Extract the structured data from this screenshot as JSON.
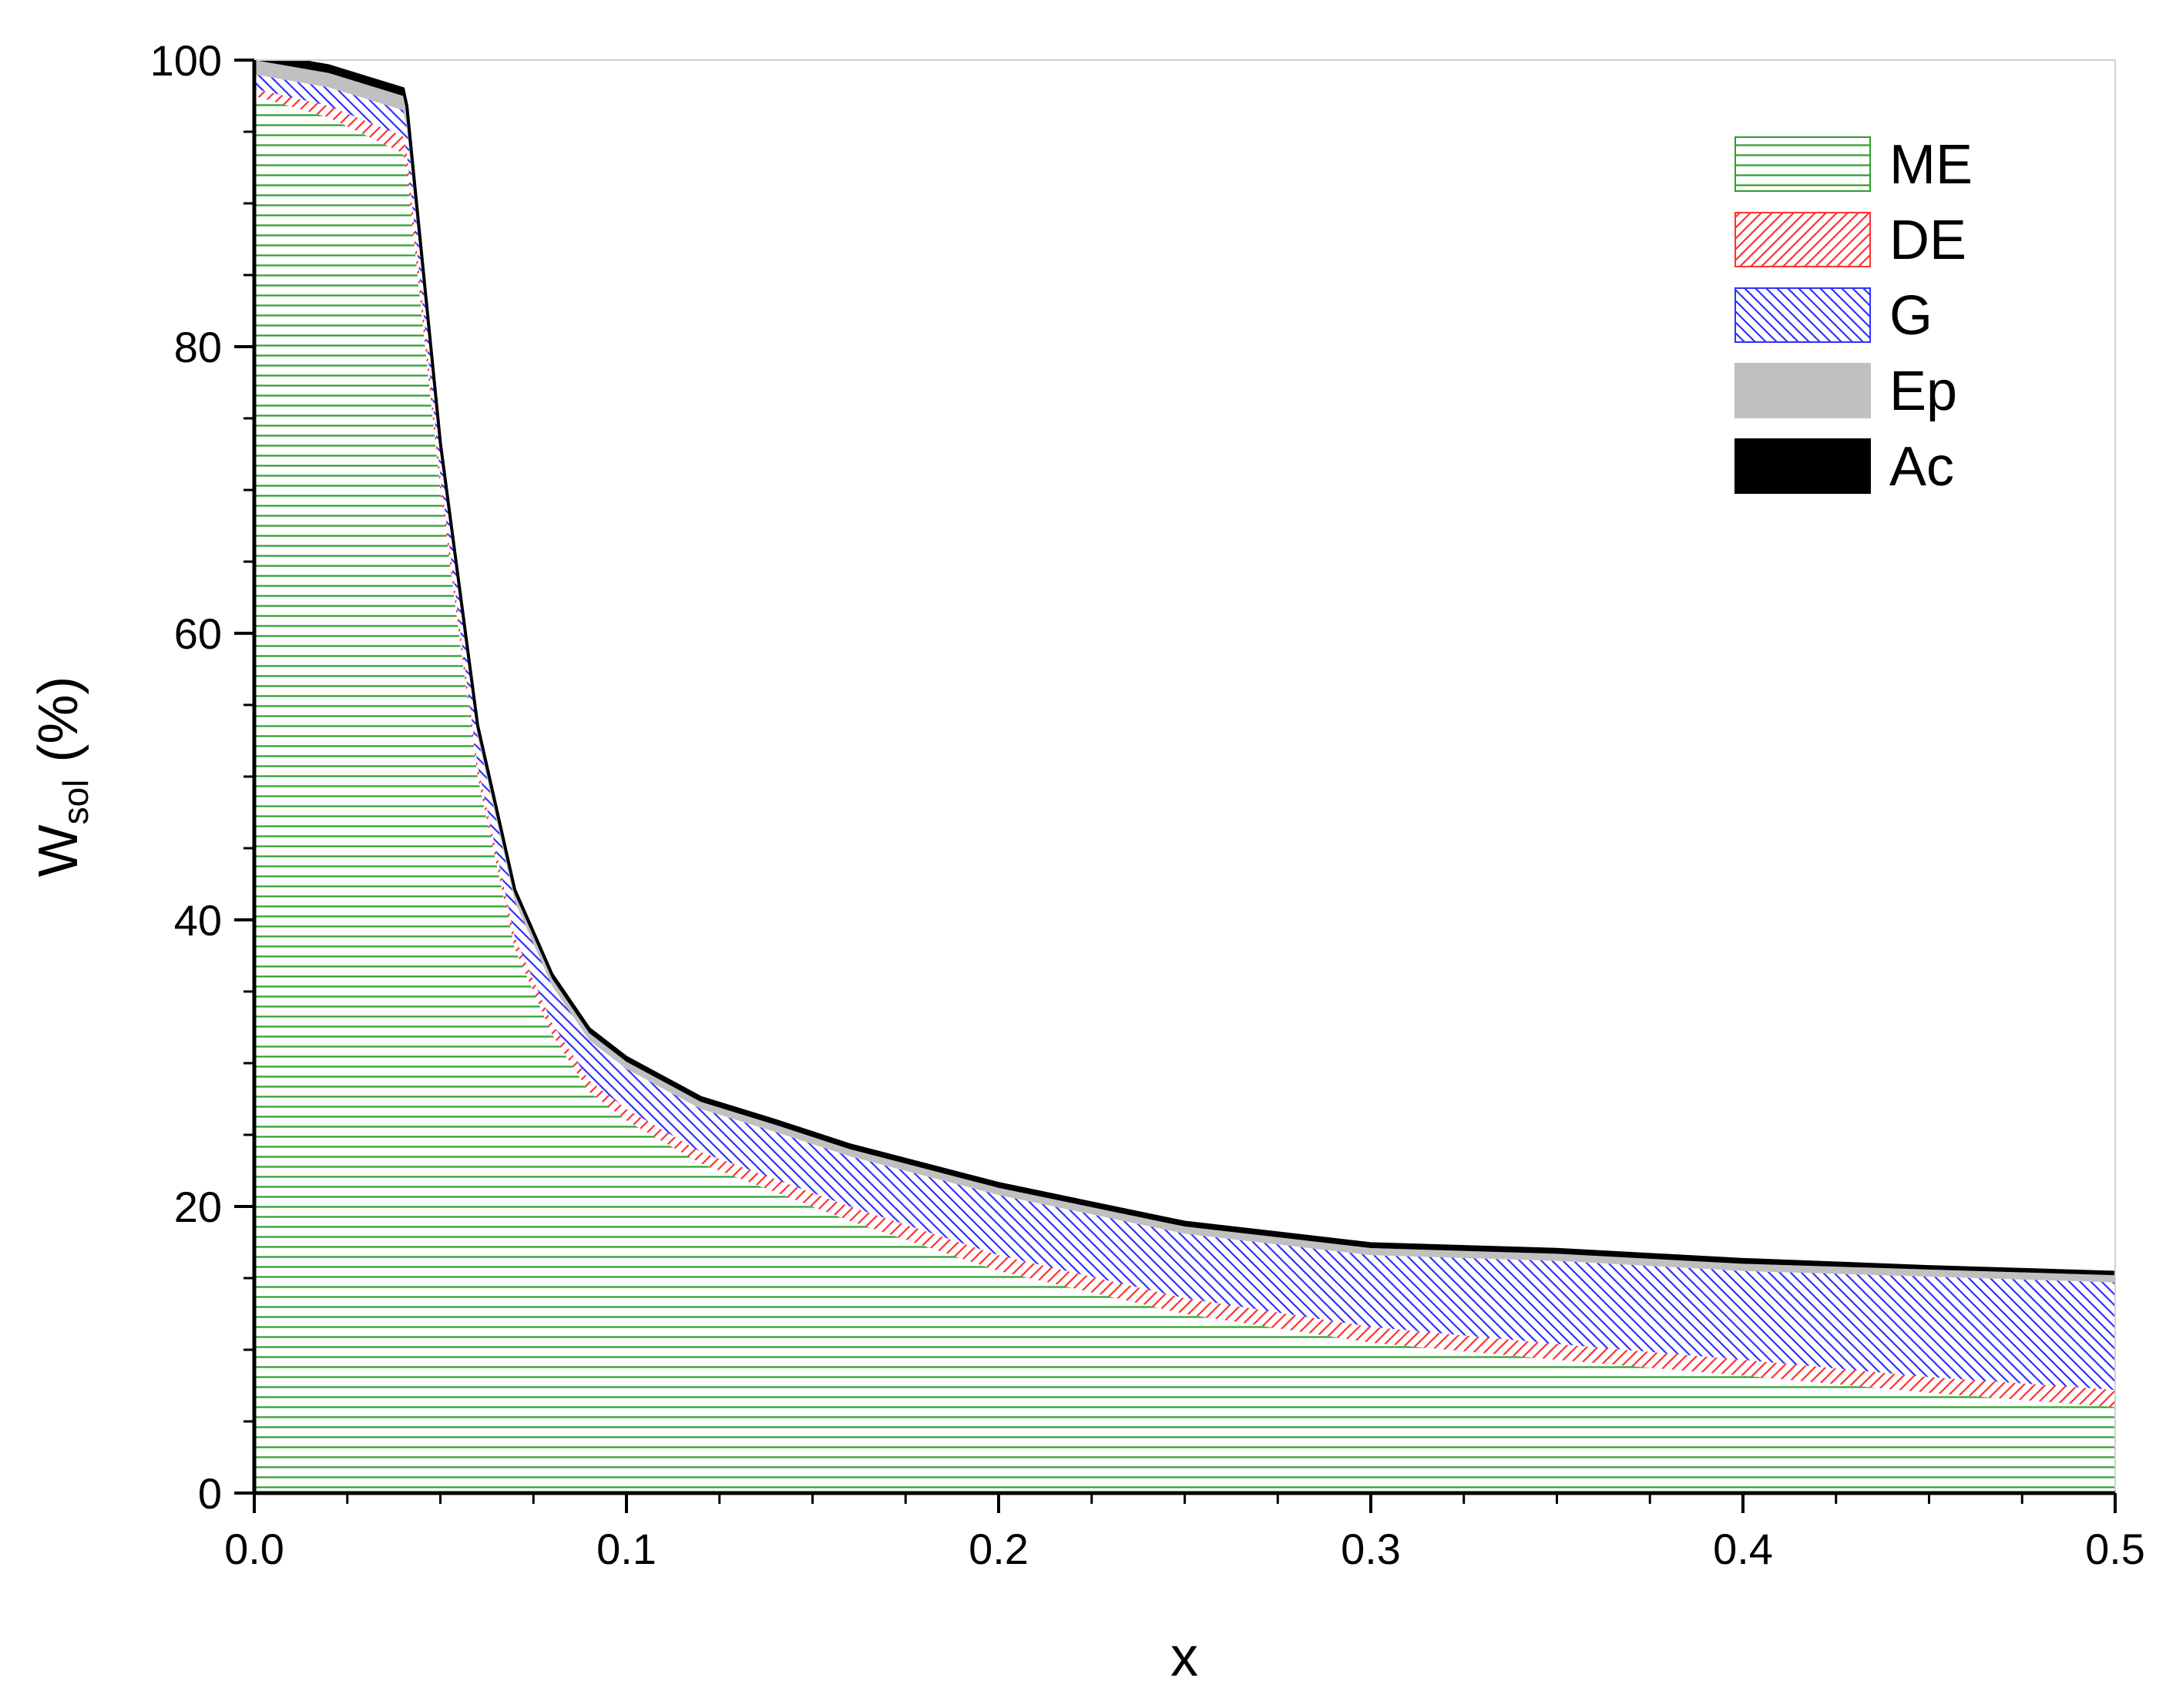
{
  "chart_data": {
    "type": "area",
    "stacked": true,
    "xlabel": "x",
    "ylabel": {
      "main": "W",
      "sub": "sol",
      "unit": "(%)"
    },
    "xlim": [
      0,
      0.5
    ],
    "ylim": [
      0,
      100
    ],
    "xticks": [
      "0.0",
      "0.1",
      "0.2",
      "0.3",
      "0.4",
      "0.5"
    ],
    "yticks": [
      "0",
      "20",
      "40",
      "60",
      "80",
      "100"
    ],
    "legend_position": "top-right",
    "grid": false,
    "x": [
      0,
      0.02,
      0.04,
      0.041,
      0.05,
      0.06,
      0.07,
      0.08,
      0.09,
      0.1,
      0.12,
      0.14,
      0.16,
      0.2,
      0.25,
      0.3,
      0.35,
      0.4,
      0.45,
      0.5
    ],
    "series": [
      {
        "name": "ME",
        "color": "#2ca02c",
        "pattern": "horizontal",
        "values": [
          97.5,
          96,
          93.5,
          92,
          70,
          50,
          38,
          32,
          28,
          26,
          23,
          21,
          19,
          15.5,
          12.5,
          10.5,
          9.3,
          8.2,
          7,
          6
        ]
      },
      {
        "name": "DE",
        "color": "#ff3030",
        "pattern": "diagonal-up",
        "values": [
          0.5,
          0.8,
          1.2,
          1.5,
          1,
          0.8,
          0.8,
          0.8,
          0.8,
          0.8,
          0.8,
          0.9,
          1,
          1.1,
          1.1,
          1.1,
          1.1,
          1.1,
          1.1,
          1.2
        ]
      },
      {
        "name": "G",
        "color": "#3030ff",
        "pattern": "diagonal-down",
        "values": [
          1,
          1.3,
          1.8,
          1.8,
          1.5,
          2,
          2.5,
          2.6,
          2.8,
          2.8,
          3,
          3.3,
          3.5,
          4.2,
          4.5,
          5,
          5.8,
          6.2,
          7,
          7.5
        ]
      },
      {
        "name": "Ep",
        "color": "#c0c0c0",
        "pattern": "solid",
        "values": [
          1,
          1,
          1,
          1,
          0.5,
          0.5,
          0.5,
          0.5,
          0.5,
          0.5,
          0.5,
          0.5,
          0.5,
          0.5,
          0.5,
          0.5,
          0.5,
          0.5,
          0.5,
          0.5
        ]
      },
      {
        "name": "Ac",
        "color": "#000000",
        "pattern": "solid",
        "values": [
          0.5,
          0.5,
          0.5,
          0.5,
          0.3,
          0.3,
          0.3,
          0.3,
          0.3,
          0.3,
          0.3,
          0.3,
          0.3,
          0.3,
          0.3,
          0.3,
          0.3,
          0.3,
          0.2,
          0.2
        ]
      }
    ]
  }
}
